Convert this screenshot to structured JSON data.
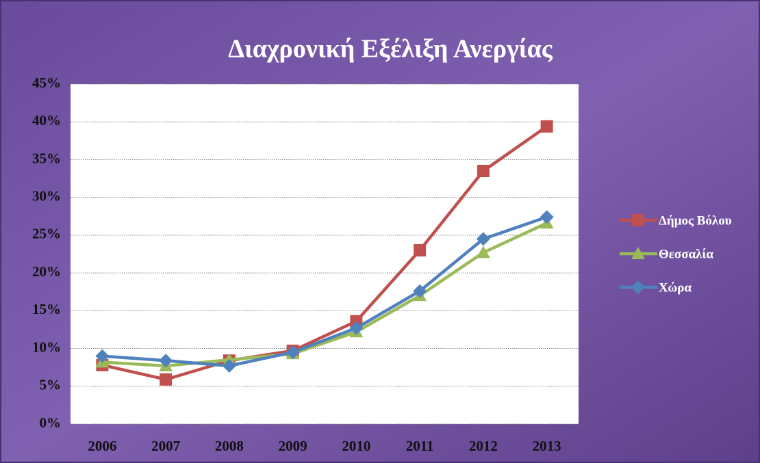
{
  "chart_data": {
    "type": "line",
    "title": "Διαχρονική Εξέλιξη Ανεργίας",
    "categories": [
      "2006",
      "2007",
      "2008",
      "2009",
      "2010",
      "2011",
      "2012",
      "2013"
    ],
    "series": [
      {
        "name": "Δήμος Βόλου",
        "color": "#c0504d",
        "marker": "square",
        "values": [
          7.8,
          5.9,
          8.4,
          9.7,
          13.6,
          23.0,
          33.5,
          39.4
        ]
      },
      {
        "name": "Θεσσαλία",
        "color": "#9bbb59",
        "marker": "triangle",
        "values": [
          8.2,
          7.7,
          8.5,
          9.3,
          12.2,
          17.0,
          22.7,
          26.6
        ]
      },
      {
        "name": "Χώρα",
        "color": "#4f81bd",
        "marker": "diamond",
        "values": [
          9.0,
          8.4,
          7.7,
          9.5,
          12.7,
          17.6,
          24.5,
          27.4
        ]
      }
    ],
    "ylim": [
      0,
      45
    ],
    "yticks": [
      {
        "value": 0,
        "label": "0%"
      },
      {
        "value": 5,
        "label": "5%"
      },
      {
        "value": 10,
        "label": "10%"
      },
      {
        "value": 15,
        "label": "15%"
      },
      {
        "value": 20,
        "label": "20%"
      },
      {
        "value": 25,
        "label": "25%"
      },
      {
        "value": 30,
        "label": "30%"
      },
      {
        "value": 35,
        "label": "35%"
      },
      {
        "value": 40,
        "label": "40%"
      },
      {
        "value": 45,
        "label": "45%"
      }
    ],
    "grid": true,
    "legend": "right"
  }
}
